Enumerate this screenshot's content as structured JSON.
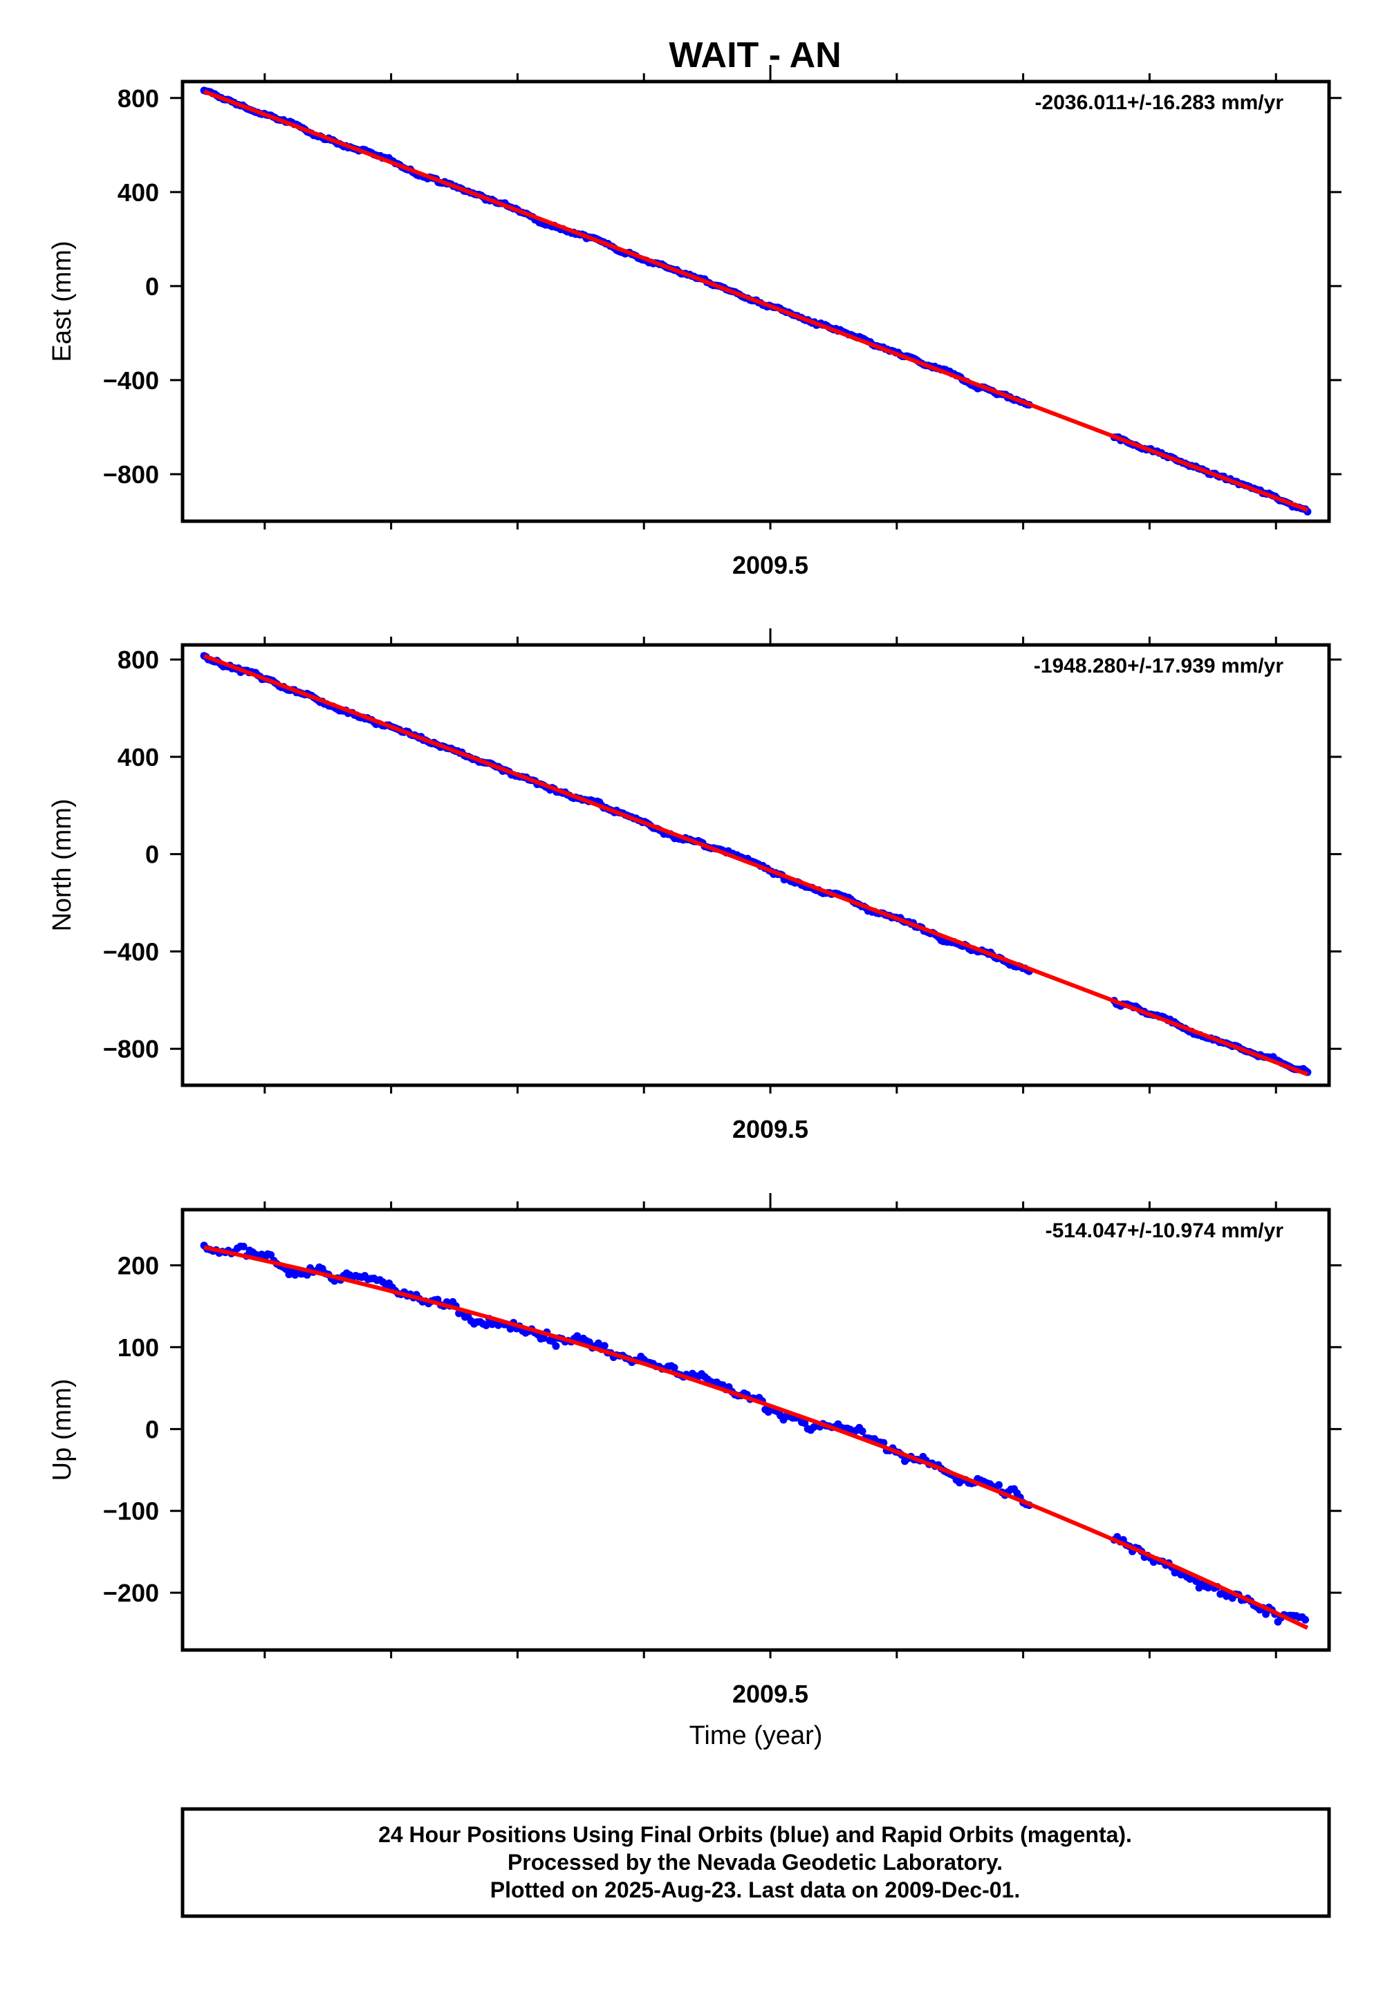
{
  "title": "WAIT - AN",
  "colors": {
    "data_points": "#0000ff",
    "fit_line": "#ff0000",
    "frame": "#000000"
  },
  "footer": {
    "lines": [
      "24 Hour Positions Using Final Orbits (blue) and Rapid Orbits (magenta).",
      "Processed by the Nevada Geodetic Laboratory.",
      "Plotted on 2025-Aug-23. Last data on 2009-Dec-01."
    ]
  },
  "chart_data": [
    {
      "type": "scatter",
      "ylabel": "East (mm)",
      "xlabel": "",
      "rate_label": "-2036.011+/-16.283 mm/yr",
      "xlim": [
        2009.035,
        2009.942
      ],
      "ylim": [
        -1000,
        870
      ],
      "x_ticks": [
        2009.5
      ],
      "x_minor_ticks": [
        2009.1,
        2009.2,
        2009.3,
        2009.4,
        2009.5,
        2009.6,
        2009.7,
        2009.8,
        2009.9
      ],
      "y_ticks": [
        800,
        400,
        0,
        -400,
        -800
      ],
      "y_tick_labels": [
        "800",
        "400",
        "0",
        "−400",
        "−800"
      ],
      "segments": [
        [
          2009.052,
          2009.705
        ],
        [
          2009.772,
          2009.925
        ]
      ],
      "fit": {
        "x": [
          2009.052,
          2009.925
        ],
        "y": [
          828,
          -952
        ],
        "curve": 0
      },
      "noise": 7,
      "point_step": 0.0017,
      "grid": false
    },
    {
      "type": "scatter",
      "ylabel": "North (mm)",
      "xlabel": "",
      "rate_label": "-1948.280+/-17.939 mm/yr",
      "xlim": [
        2009.035,
        2009.942
      ],
      "ylim": [
        -950,
        860
      ],
      "x_ticks": [
        2009.5
      ],
      "x_minor_ticks": [
        2009.1,
        2009.2,
        2009.3,
        2009.4,
        2009.5,
        2009.6,
        2009.7,
        2009.8,
        2009.9
      ],
      "y_ticks": [
        800,
        400,
        0,
        -400,
        -800
      ],
      "y_tick_labels": [
        "800",
        "400",
        "0",
        "−400",
        "−800"
      ],
      "segments": [
        [
          2009.052,
          2009.705
        ],
        [
          2009.772,
          2009.925
        ]
      ],
      "fit": {
        "x": [
          2009.052,
          2009.925
        ],
        "y": [
          815,
          -905
        ],
        "curve": 0
      },
      "noise": 8,
      "point_step": 0.0017,
      "grid": false
    },
    {
      "type": "scatter",
      "ylabel": "Up (mm)",
      "xlabel": "Time (year)",
      "rate_label": "-514.047+/-10.974 mm/yr",
      "xlim": [
        2009.035,
        2009.942
      ],
      "ylim": [
        -270,
        268
      ],
      "x_ticks": [
        2009.5
      ],
      "x_minor_ticks": [
        2009.1,
        2009.2,
        2009.3,
        2009.4,
        2009.5,
        2009.6,
        2009.7,
        2009.8,
        2009.9
      ],
      "y_ticks": [
        200,
        100,
        0,
        -100,
        -200
      ],
      "y_tick_labels": [
        "200",
        "100",
        "0",
        "−100",
        "−200"
      ],
      "segments": [
        [
          2009.052,
          2009.705
        ],
        [
          2009.772,
          2009.925
        ]
      ],
      "fit": {
        "x": [
          2009.052,
          2009.925
        ],
        "y": [
          222,
          -243
        ],
        "curve": 45
      },
      "noise": 7,
      "point_step": 0.0024,
      "grid": false
    }
  ]
}
